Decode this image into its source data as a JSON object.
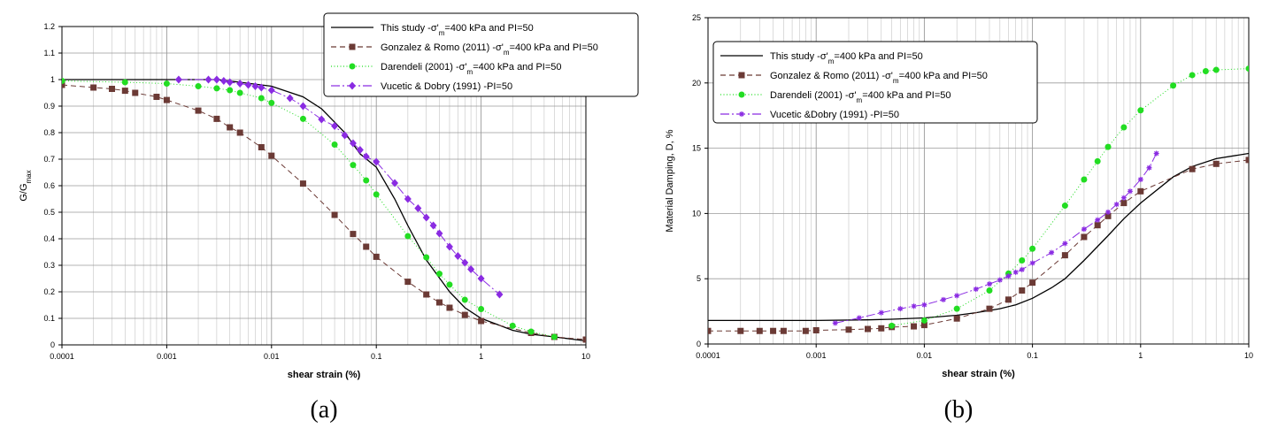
{
  "chart_data": [
    {
      "type": "line",
      "panel_label": "(a)",
      "xlabel": "shear strain (%)",
      "ylabel_main": "G/G",
      "ylabel_sub": "max",
      "xscale": "log",
      "xlim": [
        0.0001,
        10
      ],
      "ylim": [
        0,
        1.2
      ],
      "xticks": [
        "0.0001",
        "0.001",
        "0.01",
        "0.1",
        "1",
        "10"
      ],
      "yticks": [
        "0",
        "0.1",
        "0.2",
        "0.3",
        "0.4",
        "0.5",
        "0.6",
        "0.7",
        "0.8",
        "0.9",
        "1",
        "1.1",
        "1.2"
      ],
      "grid": true,
      "legend_position": "top-right",
      "series": [
        {
          "name_main": "This study -σ'",
          "name_sub": "m",
          "name_tail": "=400 kPa and PI=50",
          "color": "#000000",
          "dash": "",
          "marker": "none",
          "x": [
            0.0001,
            0.001,
            0.003,
            0.005,
            0.01,
            0.02,
            0.03,
            0.05,
            0.07,
            0.1,
            0.15,
            0.2,
            0.3,
            0.5,
            0.7,
            1,
            2,
            3,
            5,
            10
          ],
          "y": [
            1.0,
            1.0,
            1.0,
            0.99,
            0.975,
            0.935,
            0.89,
            0.8,
            0.72,
            0.67,
            0.55,
            0.45,
            0.32,
            0.2,
            0.14,
            0.1,
            0.055,
            0.04,
            0.03,
            0.015
          ]
        },
        {
          "name_main": "Gonzalez & Romo (2011) -σ'",
          "name_sub": "m",
          "name_tail": "=400 kPa and PI=50",
          "color": "#6b3a35",
          "dash": "6,4",
          "marker": "square",
          "x": [
            0.0001,
            0.0002,
            0.0003,
            0.0004,
            0.0005,
            0.0008,
            0.001,
            0.002,
            0.003,
            0.004,
            0.005,
            0.008,
            0.01,
            0.02,
            0.04,
            0.06,
            0.08,
            0.1,
            0.2,
            0.3,
            0.4,
            0.5,
            0.7,
            1,
            3,
            5,
            10
          ],
          "y": [
            0.98,
            0.97,
            0.965,
            0.958,
            0.95,
            0.935,
            0.923,
            0.883,
            0.852,
            0.82,
            0.8,
            0.745,
            0.713,
            0.608,
            0.49,
            0.418,
            0.37,
            0.332,
            0.238,
            0.19,
            0.16,
            0.14,
            0.113,
            0.09,
            0.045,
            0.03,
            0.02
          ]
        },
        {
          "name_main": "Darendeli (2001) -σ'",
          "name_sub": "m",
          "name_tail": "=400 kPa and PI=50",
          "color": "#22dd22",
          "dash": "1,2.5",
          "marker": "circle",
          "x": [
            0.0001,
            0.0004,
            0.001,
            0.002,
            0.003,
            0.004,
            0.005,
            0.008,
            0.01,
            0.02,
            0.04,
            0.06,
            0.08,
            0.1,
            0.2,
            0.3,
            0.4,
            0.5,
            0.7,
            1,
            2,
            3,
            5
          ],
          "y": [
            0.995,
            0.99,
            0.985,
            0.975,
            0.967,
            0.96,
            0.95,
            0.93,
            0.912,
            0.852,
            0.755,
            0.678,
            0.62,
            0.567,
            0.41,
            0.33,
            0.268,
            0.227,
            0.17,
            0.135,
            0.072,
            0.05,
            0.03
          ]
        },
        {
          "name_main": "Vucetic & Dobry (1991) -PI=50",
          "name_sub": "",
          "name_tail": "",
          "color": "#8a2be2",
          "dash": "10,3,2,3",
          "marker": "diamond",
          "x": [
            0.0013,
            0.0025,
            0.003,
            0.0035,
            0.004,
            0.005,
            0.006,
            0.007,
            0.008,
            0.01,
            0.015,
            0.02,
            0.03,
            0.04,
            0.05,
            0.06,
            0.07,
            0.08,
            0.1,
            0.15,
            0.2,
            0.25,
            0.3,
            0.35,
            0.4,
            0.5,
            0.6,
            0.7,
            0.8,
            1,
            1.5
          ],
          "y": [
            1.0,
            1.0,
            1.0,
            0.995,
            0.99,
            0.985,
            0.98,
            0.975,
            0.97,
            0.96,
            0.93,
            0.9,
            0.85,
            0.825,
            0.79,
            0.76,
            0.735,
            0.71,
            0.69,
            0.61,
            0.55,
            0.515,
            0.48,
            0.45,
            0.42,
            0.37,
            0.335,
            0.31,
            0.285,
            0.25,
            0.19
          ]
        }
      ]
    },
    {
      "type": "line",
      "panel_label": "(b)",
      "xlabel": "shear strain (%)",
      "ylabel_main": "Material Damping, D, %",
      "ylabel_sub": "",
      "xscale": "log",
      "xlim": [
        0.0001,
        10
      ],
      "ylim": [
        0,
        25
      ],
      "xticks": [
        "0.0001",
        "0.001",
        "0.01",
        "0.1",
        "1",
        "10"
      ],
      "yticks": [
        "0",
        "5",
        "10",
        "15",
        "20",
        "25"
      ],
      "grid": true,
      "legend_position": "top-left",
      "series": [
        {
          "name_main": "This study -σ'",
          "name_sub": "m",
          "name_tail": "=400 kPa and PI=50",
          "color": "#000000",
          "dash": "",
          "marker": "none",
          "x": [
            0.0001,
            0.001,
            0.003,
            0.005,
            0.01,
            0.02,
            0.03,
            0.05,
            0.07,
            0.1,
            0.15,
            0.2,
            0.3,
            0.5,
            0.7,
            1,
            2,
            3,
            5,
            10
          ],
          "y": [
            1.8,
            1.8,
            1.85,
            1.9,
            2.0,
            2.2,
            2.4,
            2.7,
            3.0,
            3.5,
            4.3,
            5.0,
            6.4,
            8.3,
            9.6,
            10.8,
            12.8,
            13.6,
            14.2,
            14.6
          ]
        },
        {
          "name_main": "Gonzalez & Romo (2011) -σ'",
          "name_sub": "m",
          "name_tail": "=400 kPa and PI=50",
          "color": "#6b3a35",
          "dash": "6,4",
          "marker": "square",
          "x": [
            0.0001,
            0.0002,
            0.0003,
            0.0004,
            0.0005,
            0.0008,
            0.001,
            0.002,
            0.003,
            0.004,
            0.005,
            0.008,
            0.01,
            0.02,
            0.04,
            0.06,
            0.08,
            0.1,
            0.2,
            0.3,
            0.4,
            0.5,
            0.7,
            1,
            3,
            5,
            10
          ],
          "y": [
            1.0,
            1.0,
            1.0,
            1.0,
            1.0,
            1.0,
            1.05,
            1.1,
            1.15,
            1.2,
            1.3,
            1.35,
            1.45,
            1.95,
            2.7,
            3.4,
            4.1,
            4.7,
            6.8,
            8.2,
            9.1,
            9.8,
            10.8,
            11.7,
            13.4,
            13.8,
            14.1
          ]
        },
        {
          "name_main": "Darendeli (2001) -σ'",
          "name_sub": "m",
          "name_tail": "=400 kPa and PI=50",
          "color": "#22dd22",
          "dash": "1,2.5",
          "marker": "circle",
          "x": [
            0.005,
            0.01,
            0.02,
            0.04,
            0.06,
            0.08,
            0.1,
            0.2,
            0.3,
            0.4,
            0.5,
            0.7,
            1,
            2,
            3,
            4,
            5,
            10
          ],
          "y": [
            1.4,
            1.8,
            2.7,
            4.1,
            5.4,
            6.4,
            7.3,
            10.6,
            12.6,
            14.0,
            15.1,
            16.6,
            17.9,
            19.8,
            20.6,
            20.9,
            21.0,
            21.1
          ]
        },
        {
          "name_main": "Vucetic &Dobry (1991) -PI=50",
          "name_sub": "",
          "name_tail": "",
          "color": "#8a2be2",
          "dash": "10,3,2,3",
          "marker": "star",
          "x": [
            0.0015,
            0.0025,
            0.004,
            0.006,
            0.008,
            0.01,
            0.015,
            0.02,
            0.03,
            0.04,
            0.05,
            0.06,
            0.07,
            0.08,
            0.1,
            0.15,
            0.2,
            0.3,
            0.4,
            0.5,
            0.6,
            0.7,
            0.8,
            1,
            1.2,
            1.4
          ],
          "y": [
            1.6,
            2.0,
            2.4,
            2.7,
            2.9,
            3.0,
            3.4,
            3.7,
            4.2,
            4.6,
            4.9,
            5.2,
            5.5,
            5.7,
            6.2,
            7.0,
            7.7,
            8.8,
            9.5,
            10.1,
            10.7,
            11.2,
            11.7,
            12.6,
            13.5,
            14.6
          ]
        }
      ]
    }
  ]
}
